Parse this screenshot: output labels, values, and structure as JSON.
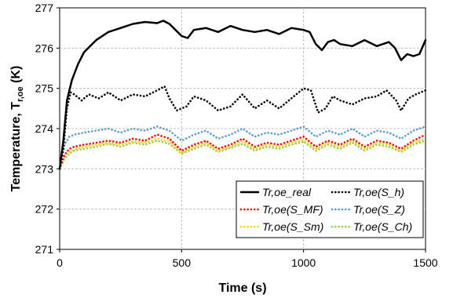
{
  "chart_data": {
    "type": "line",
    "title": "",
    "xlabel": "Time (s)",
    "ylabel_main": "Temperature, T",
    "ylabel_sub": "r,oe",
    "ylabel_unit": " (K)",
    "xlim": [
      0,
      1500
    ],
    "ylim": [
      271,
      277
    ],
    "xticks": [
      0,
      500,
      1000,
      1500
    ],
    "yticks": [
      271,
      272,
      273,
      274,
      275,
      276,
      277
    ],
    "grid": true,
    "legend_placement": "bottom-right",
    "series": [
      {
        "name": "Tr,oe_real",
        "color": "#000000",
        "style": "solid",
        "x": [
          0,
          15,
          30,
          50,
          75,
          100,
          150,
          200,
          250,
          300,
          350,
          400,
          425,
          450,
          475,
          500,
          525,
          550,
          600,
          650,
          700,
          750,
          800,
          850,
          900,
          950,
          1000,
          1025,
          1050,
          1075,
          1100,
          1125,
          1150,
          1200,
          1250,
          1300,
          1350,
          1375,
          1400,
          1425,
          1450,
          1475,
          1500
        ],
        "y": [
          273.0,
          273.7,
          274.7,
          275.2,
          275.6,
          275.9,
          276.2,
          276.4,
          276.5,
          276.6,
          276.65,
          276.62,
          276.68,
          276.6,
          276.45,
          276.3,
          276.25,
          276.45,
          276.5,
          276.4,
          276.55,
          276.45,
          276.4,
          276.45,
          276.35,
          276.5,
          276.45,
          276.4,
          276.1,
          275.95,
          276.15,
          276.2,
          276.1,
          276.05,
          276.2,
          276.05,
          276.15,
          276.0,
          275.7,
          275.85,
          275.8,
          275.85,
          276.2
        ]
      },
      {
        "name": "Tr,oe(S_h)",
        "color": "#000000",
        "style": "dotted",
        "x": [
          0,
          15,
          30,
          45,
          60,
          90,
          120,
          160,
          200,
          250,
          300,
          350,
          400,
          430,
          450,
          480,
          500,
          520,
          550,
          600,
          650,
          700,
          750,
          800,
          850,
          900,
          950,
          1000,
          1030,
          1060,
          1090,
          1120,
          1150,
          1200,
          1250,
          1300,
          1340,
          1380,
          1400,
          1430,
          1460,
          1500
        ],
        "y": [
          273.0,
          273.5,
          274.5,
          274.9,
          274.85,
          274.7,
          274.85,
          274.75,
          274.9,
          274.7,
          274.85,
          274.8,
          274.95,
          275.05,
          274.75,
          274.45,
          274.5,
          274.55,
          274.8,
          274.7,
          274.45,
          274.55,
          274.85,
          274.5,
          274.7,
          274.5,
          274.75,
          275.0,
          274.95,
          274.4,
          274.5,
          274.8,
          274.7,
          274.6,
          274.75,
          274.8,
          274.95,
          274.7,
          274.45,
          274.75,
          274.85,
          274.95
        ]
      },
      {
        "name": "Tr,oe(S_MF)",
        "color": "#ff0000",
        "style": "dotted",
        "x": [
          0,
          20,
          40,
          60,
          100,
          150,
          200,
          250,
          300,
          350,
          400,
          450,
          500,
          550,
          600,
          650,
          700,
          750,
          800,
          850,
          900,
          950,
          1000,
          1050,
          1100,
          1150,
          1200,
          1250,
          1300,
          1350,
          1400,
          1450,
          1500
        ],
        "y": [
          273.0,
          273.35,
          273.5,
          273.55,
          273.6,
          273.65,
          273.7,
          273.65,
          273.75,
          273.7,
          273.85,
          273.75,
          273.45,
          273.6,
          273.7,
          273.5,
          273.6,
          273.75,
          273.55,
          273.65,
          273.6,
          273.7,
          273.8,
          273.55,
          273.7,
          273.6,
          273.75,
          273.55,
          273.7,
          273.65,
          273.5,
          273.7,
          273.85
        ]
      },
      {
        "name": "Tr,oe(S_Z)",
        "color": "#5b9bd5",
        "style": "dotted",
        "x": [
          0,
          20,
          40,
          60,
          100,
          150,
          200,
          250,
          300,
          350,
          400,
          450,
          500,
          550,
          600,
          650,
          700,
          750,
          800,
          850,
          900,
          950,
          1000,
          1050,
          1100,
          1150,
          1200,
          1250,
          1300,
          1350,
          1400,
          1450,
          1500
        ],
        "y": [
          273.0,
          273.6,
          273.8,
          273.85,
          273.9,
          273.95,
          274.0,
          273.9,
          274.0,
          273.95,
          274.05,
          273.95,
          273.7,
          273.85,
          273.95,
          273.75,
          273.85,
          274.0,
          273.8,
          273.9,
          273.85,
          273.95,
          274.05,
          273.8,
          273.95,
          273.85,
          274.0,
          273.8,
          273.95,
          273.9,
          273.75,
          273.95,
          274.05
        ]
      },
      {
        "name": "Tr,oe(S_Sm)",
        "color": "#ffd700",
        "style": "dotted",
        "x": [
          0,
          20,
          40,
          60,
          100,
          150,
          200,
          250,
          300,
          350,
          400,
          450,
          500,
          550,
          600,
          650,
          700,
          750,
          800,
          850,
          900,
          950,
          1000,
          1050,
          1100,
          1150,
          1200,
          1250,
          1300,
          1350,
          1400,
          1450,
          1500
        ],
        "y": [
          273.0,
          273.3,
          273.42,
          273.48,
          273.55,
          273.6,
          273.65,
          273.6,
          273.68,
          273.65,
          273.75,
          273.68,
          273.4,
          273.55,
          273.65,
          273.45,
          273.55,
          273.68,
          273.5,
          273.6,
          273.55,
          273.65,
          273.72,
          273.5,
          273.65,
          273.55,
          273.7,
          273.5,
          273.65,
          273.6,
          273.45,
          273.65,
          273.75
        ]
      },
      {
        "name": "Tr,oe(S_Ch)",
        "color": "#92d050",
        "style": "dotted",
        "x": [
          0,
          20,
          40,
          60,
          100,
          150,
          200,
          250,
          300,
          350,
          400,
          450,
          500,
          550,
          600,
          650,
          700,
          750,
          800,
          850,
          900,
          950,
          1000,
          1050,
          1100,
          1150,
          1200,
          1250,
          1300,
          1350,
          1400,
          1450,
          1500
        ],
        "y": [
          273.0,
          273.25,
          273.38,
          273.45,
          273.5,
          273.55,
          273.62,
          273.55,
          273.65,
          273.6,
          273.7,
          273.62,
          273.38,
          273.5,
          273.6,
          273.42,
          273.52,
          273.62,
          273.45,
          273.55,
          273.5,
          273.6,
          273.68,
          273.45,
          273.6,
          273.5,
          273.65,
          273.45,
          273.6,
          273.55,
          273.42,
          273.6,
          273.7
        ]
      }
    ],
    "legend_entries": [
      {
        "label": "Tr,oe_real",
        "color": "#000000",
        "style": "solid"
      },
      {
        "label": "Tr,oe(S_h)",
        "color": "#000000",
        "style": "dotted"
      },
      {
        "label": "Tr,oe(S_MF)",
        "color": "#ff0000",
        "style": "dotted"
      },
      {
        "label": "Tr,oe(S_Z)",
        "color": "#5b9bd5",
        "style": "dotted"
      },
      {
        "label": "Tr,oe(S_Sm)",
        "color": "#ffd700",
        "style": "dotted"
      },
      {
        "label": "Tr,oe(S_Ch)",
        "color": "#92d050",
        "style": "dotted"
      }
    ]
  }
}
